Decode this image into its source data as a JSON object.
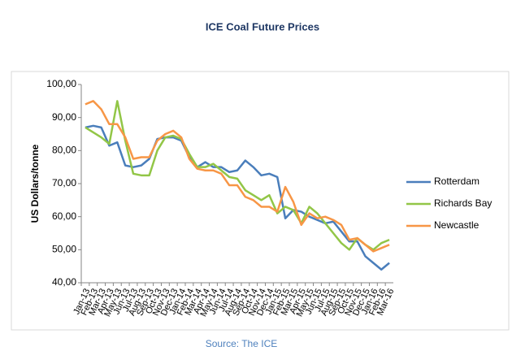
{
  "chart_data": {
    "type": "line",
    "title": "ICE Coal Future Prices",
    "y_label": "US Dollars/tonne",
    "source": "Source: The ICE",
    "categories": [
      "Jan-13",
      "Feb-13",
      "Mar-13",
      "Apr-13",
      "May-13",
      "Jun-13",
      "Jul-13",
      "Aug-13",
      "Sep-13",
      "Oct-13",
      "Nov-13",
      "Dec-13",
      "Jan-14",
      "Feb-14",
      "Mar-14",
      "Apr-14",
      "May-14",
      "Jun-14",
      "Jul-14",
      "Aug-14",
      "Sep-14",
      "Oct-14",
      "Nov-14",
      "Dec-14",
      "Jan-15",
      "Feb-15",
      "Mar-15",
      "Apr-15",
      "May-15",
      "Jun-15",
      "Jul-15",
      "Aug-15",
      "Sep-15",
      "Oct-15",
      "Nov-15",
      "Dec-15",
      "Jan-16",
      "Feb-16",
      "Mar-16"
    ],
    "series": [
      {
        "name": "Rotterdam",
        "color": "#4a7ebb",
        "values": [
          87,
          87.5,
          87,
          81.5,
          82.5,
          75.5,
          75,
          75.5,
          77.5,
          83.5,
          84,
          84,
          83,
          78,
          75,
          76.5,
          75,
          75,
          73.5,
          74,
          77,
          75,
          72.5,
          73,
          72,
          59.5,
          62,
          61.5,
          60,
          59,
          58,
          58.5,
          55.5,
          52.5,
          52.5,
          48,
          46,
          44,
          46
        ]
      },
      {
        "name": "Richards Bay",
        "color": "#92c647",
        "values": [
          87,
          85.5,
          84,
          82,
          95,
          83,
          73,
          72.5,
          72.5,
          80,
          84,
          84.5,
          83.5,
          79,
          75,
          75,
          76,
          74,
          72,
          71.5,
          68,
          66.5,
          65,
          66.5,
          61,
          63,
          62,
          58,
          63,
          61,
          58,
          55,
          52,
          50,
          53.5,
          51.5,
          50,
          52,
          53
        ]
      },
      {
        "name": "Newcastle",
        "color": "#f79646",
        "values": [
          94,
          95,
          92.5,
          88,
          88,
          84,
          77.5,
          78,
          78,
          83,
          85,
          86,
          84,
          77.5,
          74.5,
          74,
          74,
          73,
          69.5,
          69.5,
          66,
          65,
          63,
          63,
          61.5,
          69,
          64.5,
          57.5,
          61,
          59.5,
          60,
          59,
          57.5,
          53,
          53.5,
          51.5,
          49.5,
          50.5,
          51.5
        ]
      }
    ],
    "ylim": [
      40,
      100
    ],
    "yticks": [
      {
        "value": 40,
        "label": "40,00"
      },
      {
        "value": 50,
        "label": "50,00"
      },
      {
        "value": 60,
        "label": "60,00"
      },
      {
        "value": 70,
        "label": "70,00"
      },
      {
        "value": 80,
        "label": "80,00"
      },
      {
        "value": 90,
        "label": "90,00"
      },
      {
        "value": 100,
        "label": "100,00"
      }
    ],
    "grid": false,
    "legend": "right"
  }
}
